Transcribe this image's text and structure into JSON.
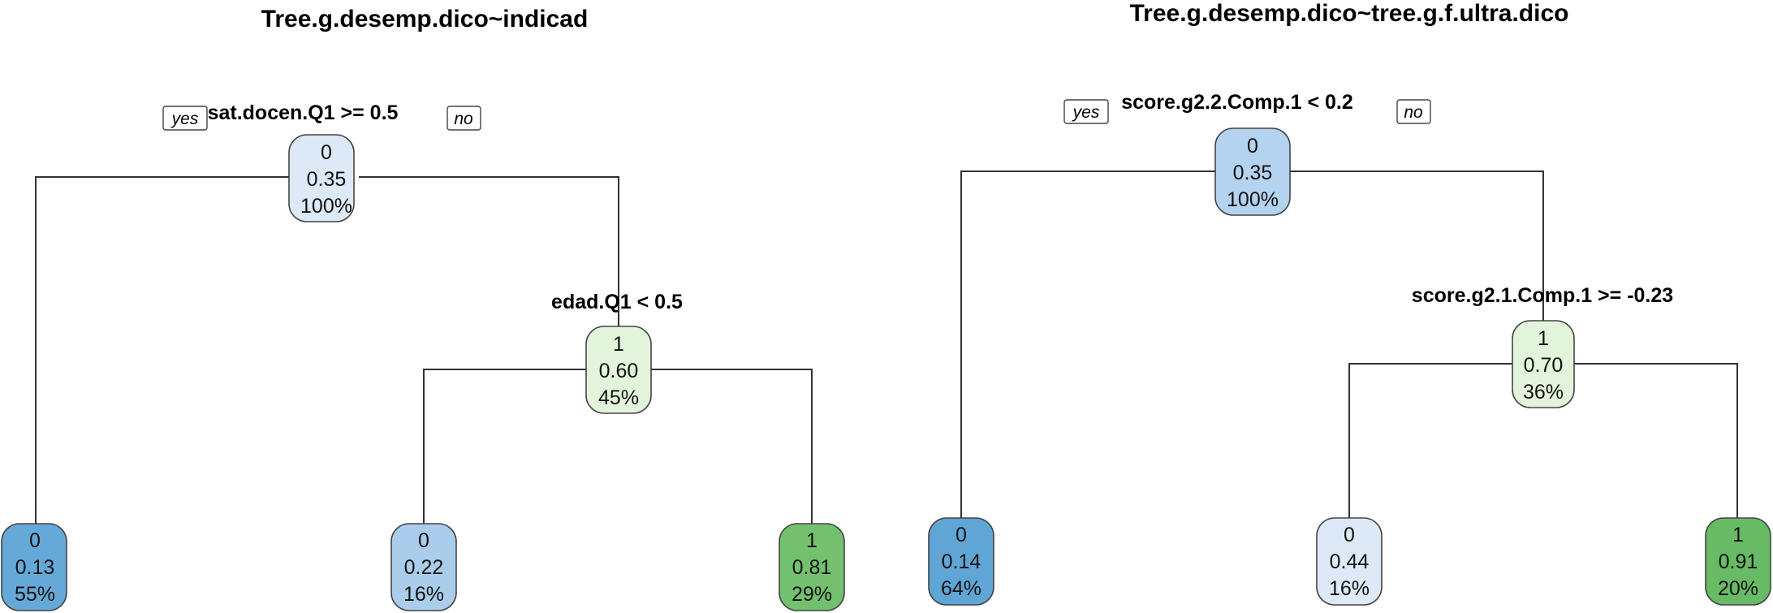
{
  "trees": [
    {
      "title": "Tree.g.desemp.dico~indicad",
      "yes_label": "yes",
      "no_label": "no",
      "root": {
        "split": "sat.docen.Q1 >= 0.5",
        "class": "0",
        "prob": "0.35",
        "pct": "100%",
        "color": "#dde9f6",
        "left": {
          "class": "0",
          "prob": "0.13",
          "pct": "55%",
          "color": "#65a9d8"
        },
        "right": {
          "split": "edad.Q1 < 0.5",
          "class": "1",
          "prob": "0.60",
          "pct": "45%",
          "color": "#e2f4dc",
          "left": {
            "class": "0",
            "prob": "0.22",
            "pct": "16%",
            "color": "#a9cdeb"
          },
          "right": {
            "class": "1",
            "prob": "0.81",
            "pct": "29%",
            "color": "#73c16f"
          }
        }
      }
    },
    {
      "title": "Tree.g.desemp.dico~tree.g.f.ultra.dico",
      "yes_label": "yes",
      "no_label": "no",
      "root": {
        "split": "score.g2.2.Comp.1 < 0.2",
        "class": "0",
        "prob": "0.35",
        "pct": "100%",
        "color": "#b3d3ee",
        "left": {
          "class": "0",
          "prob": "0.14",
          "pct": "64%",
          "color": "#5fa5d6"
        },
        "right": {
          "split": "score.g2.1.Comp.1 >= -0.23",
          "class": "1",
          "prob": "0.70",
          "pct": "36%",
          "color": "#e2f4dc",
          "left": {
            "class": "0",
            "prob": "0.44",
            "pct": "16%",
            "color": "#dde9f6"
          },
          "right": {
            "class": "1",
            "prob": "0.91",
            "pct": "20%",
            "color": "#68bb64"
          }
        }
      }
    }
  ]
}
